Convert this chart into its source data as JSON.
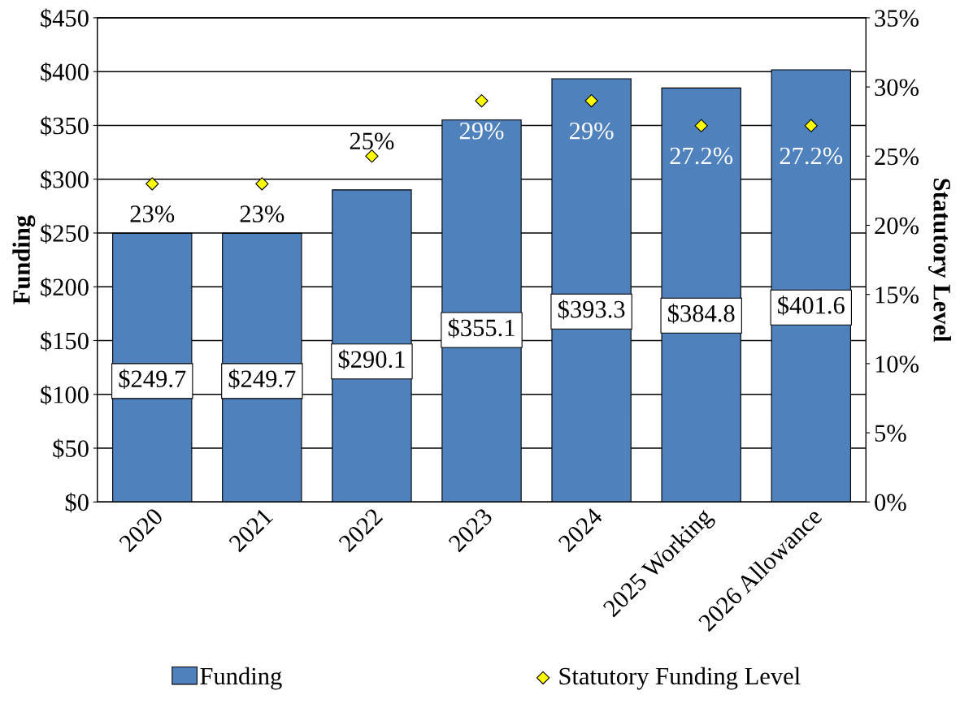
{
  "chart_data": {
    "type": "bar",
    "categories": [
      "2020",
      "2021",
      "2022",
      "2023",
      "2024",
      "2025 Working",
      "2026 Allowance"
    ],
    "ylabel": "Funding",
    "y2label": "Statutory Level",
    "ylim": [
      0,
      450
    ],
    "yticks": [
      {
        "value": 0,
        "label": "$0"
      },
      {
        "value": 50,
        "label": "$50"
      },
      {
        "value": 100,
        "label": "$100"
      },
      {
        "value": 150,
        "label": "$150"
      },
      {
        "value": 200,
        "label": "$200"
      },
      {
        "value": 250,
        "label": "$250"
      },
      {
        "value": 300,
        "label": "$300"
      },
      {
        "value": 350,
        "label": "$350"
      },
      {
        "value": 400,
        "label": "$400"
      },
      {
        "value": 450,
        "label": "$450"
      }
    ],
    "y2lim": [
      0,
      35
    ],
    "y2ticks": [
      {
        "value": 0,
        "label": "0%"
      },
      {
        "value": 5,
        "label": "5%"
      },
      {
        "value": 10,
        "label": "10%"
      },
      {
        "value": 15,
        "label": "15%"
      },
      {
        "value": 20,
        "label": "20%"
      },
      {
        "value": 25,
        "label": "25%"
      },
      {
        "value": 30,
        "label": "30%"
      },
      {
        "value": 35,
        "label": "35%"
      }
    ],
    "grid": "y",
    "legend": "bottom",
    "series": [
      {
        "name": "Funding",
        "color": "#4f81bd",
        "values": [
          249.7,
          249.7,
          290.1,
          355.1,
          393.3,
          384.8,
          401.6
        ],
        "value_labels": [
          "$249.7",
          "$249.7",
          "$290.1",
          "$355.1",
          "$393.3",
          "$384.8",
          "$401.6"
        ]
      },
      {
        "name": "Statutory Funding Level",
        "type": "scatter",
        "axis": "y2",
        "color": "#ffff00",
        "marker": "diamond",
        "values": [
          23,
          23,
          25,
          29,
          29,
          27.2,
          27.2
        ],
        "value_labels": [
          "23%",
          "23%",
          "25%",
          "29%",
          "29%",
          "27.2%",
          "27.2%"
        ]
      }
    ]
  }
}
